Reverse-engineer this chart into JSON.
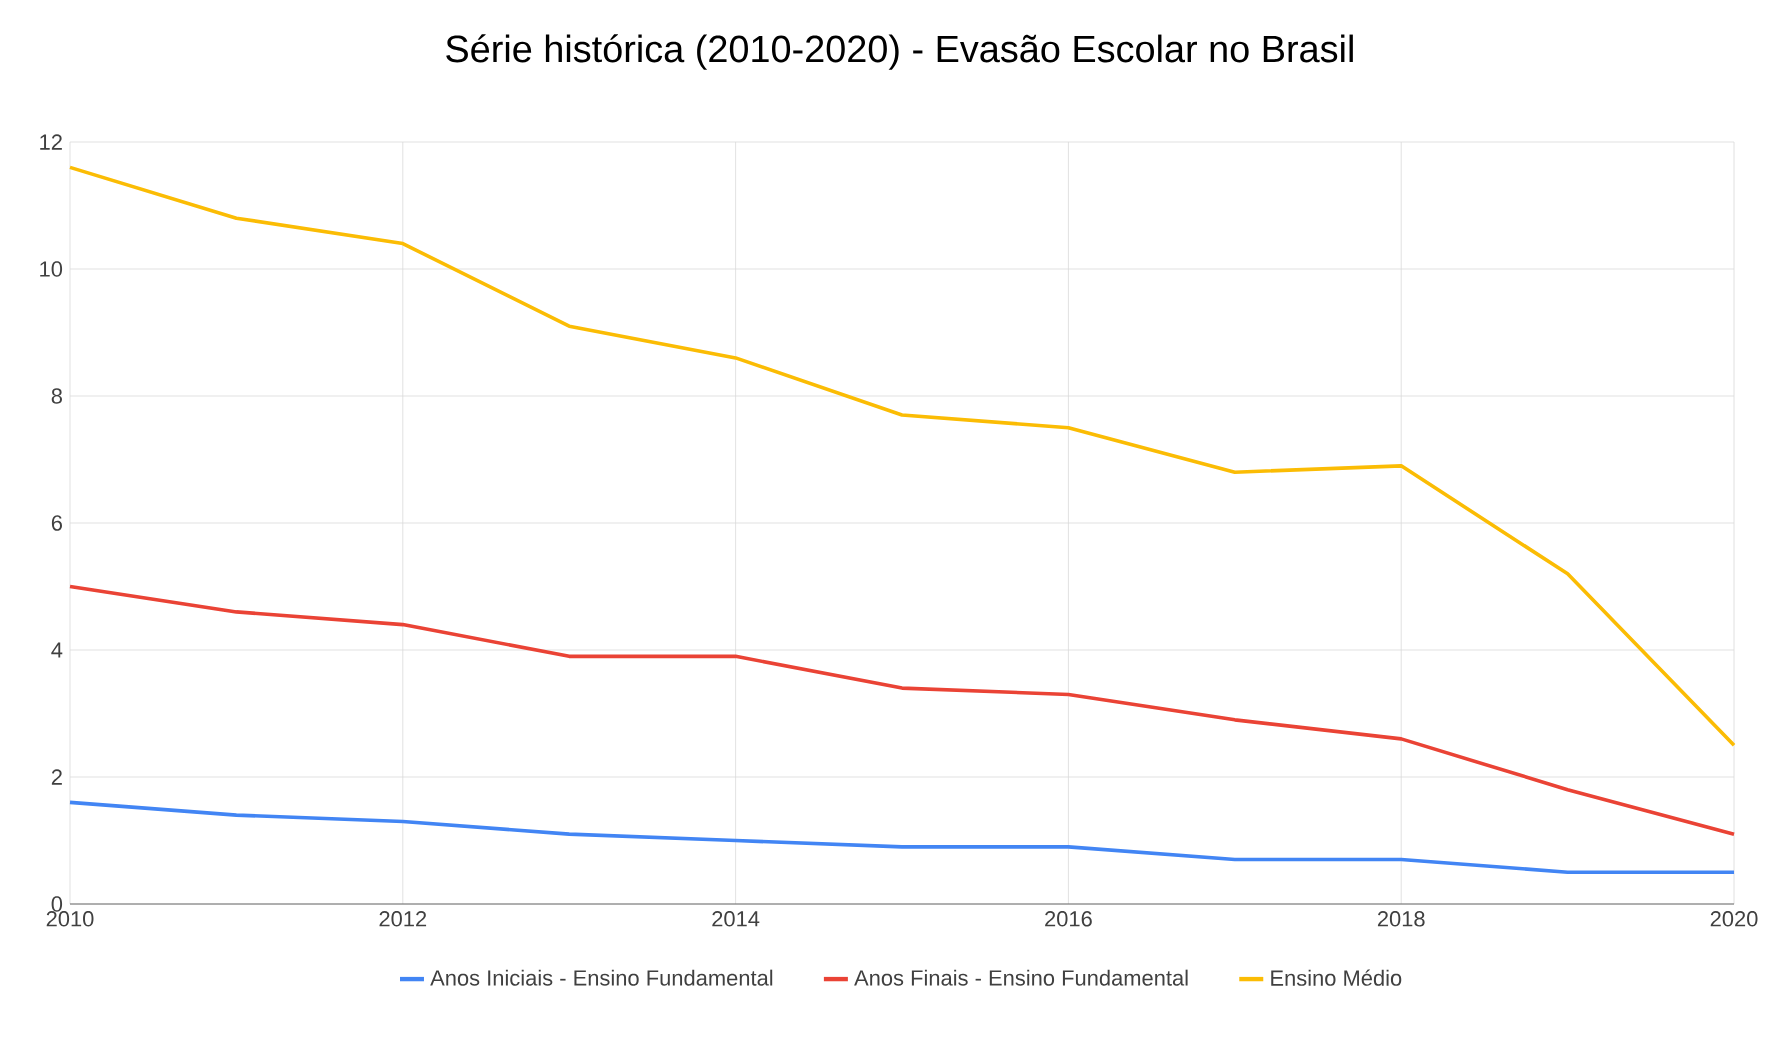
{
  "chart_data": {
    "type": "line",
    "title": "Série histórica (2010-2020) - Evasão Escolar no Brasil",
    "x": [
      2010,
      2011,
      2012,
      2013,
      2014,
      2015,
      2016,
      2017,
      2018,
      2019,
      2020
    ],
    "series": [
      {
        "name": "Anos Iniciais - Ensino Fundamental",
        "color": "#4285f4",
        "values": [
          1.6,
          1.4,
          1.3,
          1.1,
          1.0,
          0.9,
          0.9,
          0.7,
          0.7,
          0.5,
          0.5
        ]
      },
      {
        "name": "Anos Finais - Ensino Fundamental",
        "color": "#ea4335",
        "values": [
          5.0,
          4.6,
          4.4,
          3.9,
          3.9,
          3.4,
          3.3,
          2.9,
          2.6,
          1.8,
          1.1
        ]
      },
      {
        "name": "Ensino Médio",
        "color": "#fbbc04",
        "values": [
          11.6,
          10.8,
          10.4,
          9.1,
          8.6,
          7.7,
          7.5,
          6.8,
          6.9,
          5.2,
          2.5
        ]
      }
    ],
    "xlim": [
      2010,
      2020
    ],
    "xticks": [
      2010,
      2012,
      2014,
      2016,
      2018,
      2020
    ],
    "ylim": [
      0,
      12
    ],
    "yticks": [
      0,
      2,
      4,
      6,
      8,
      10,
      12
    ],
    "grid": true,
    "legend": "bottom",
    "marker": "none",
    "line_style": "solid"
  }
}
